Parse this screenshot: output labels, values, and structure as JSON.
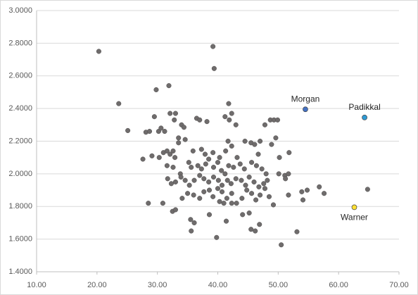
{
  "chart_data": {
    "type": "scatter",
    "xlim": [
      10,
      70
    ],
    "xticks": [
      {
        "value": 10,
        "label": "10.00"
      },
      {
        "value": 20,
        "label": "20.00"
      },
      {
        "value": 30,
        "label": "30.00"
      },
      {
        "value": 40,
        "label": "40.00"
      },
      {
        "value": 50,
        "label": "50.00"
      },
      {
        "value": 60,
        "label": "60.00"
      },
      {
        "value": 70,
        "label": "70.00"
      }
    ],
    "ylim": [
      1.4,
      3.0
    ],
    "yticks": [
      {
        "value": 1.4,
        "label": "1.4000"
      },
      {
        "value": 1.6,
        "label": "1.6000"
      },
      {
        "value": 1.8,
        "label": "1.8000"
      },
      {
        "value": 2.0,
        "label": "2.0000"
      },
      {
        "value": 2.2,
        "label": "2.2000"
      },
      {
        "value": 2.4,
        "label": "2.4000"
      },
      {
        "value": 2.6,
        "label": "2.6000"
      },
      {
        "value": 2.8,
        "label": "2.8000"
      },
      {
        "value": 3.0,
        "label": "3.0000"
      }
    ],
    "grid": true,
    "series": [
      {
        "color": "#6f6c6c",
        "x": [
          20.3,
          23.6,
          25.1,
          28.1,
          28.7,
          29.5,
          29.8,
          30.2,
          30.6,
          31.2,
          31.9,
          32.1,
          33.0,
          32.8,
          33.5,
          34.0,
          34.4,
          34.6,
          36.5,
          37.0,
          38.2,
          39.2,
          39.4,
          41.8,
          42.3,
          41.9,
          41.2,
          43.0,
          47.8,
          48.7,
          49.3,
          49.9,
          49.6,
          48.9,
          50.2,
          51.8,
          27.6,
          29.1,
          30.3,
          31.0,
          31.6,
          32.1,
          32.6,
          32.9,
          33.5,
          35.9,
          37.3,
          37.9,
          38.5,
          39.2,
          40.3,
          41.3,
          41.7,
          42.3,
          43.2,
          44.5,
          45.5,
          46.1,
          47.0,
          46.7,
          31.6,
          32.6,
          33.8,
          35.2,
          35.6,
          36.7,
          37.3,
          38.0,
          39.3,
          40.0,
          40.6,
          41.2,
          41.8,
          42.6,
          43.7,
          44.4,
          45.6,
          46.4,
          47.3,
          48.0,
          50.1,
          51.1,
          51.7,
          31.7,
          32.3,
          33.0,
          33.9,
          34.6,
          35.3,
          36.1,
          37.0,
          37.7,
          38.5,
          39.3,
          40.1,
          40.7,
          41.6,
          42.2,
          43.0,
          43.9,
          44.6,
          45.2,
          46.0,
          46.8,
          47.6,
          48.2,
          51.2,
          28.5,
          30.9,
          32.5,
          33.0,
          34.1,
          35.0,
          36.0,
          37.0,
          37.7,
          38.6,
          39.2,
          40.0,
          40.7,
          41.5,
          42.3,
          43.1,
          44.0,
          44.8,
          45.6,
          46.3,
          47.0,
          47.8,
          48.5,
          49.2,
          51.7,
          53.9,
          54.8,
          54.1,
          56.8,
          57.6,
          64.8,
          35.5,
          36.1,
          35.6,
          38.6,
          41.4,
          42.3,
          44.1,
          45.2,
          45.5,
          46.2,
          46.9,
          39.8,
          50.5,
          53.1,
          41.0,
          40.3
        ],
        "y": [
          2.75,
          2.43,
          2.265,
          2.255,
          2.26,
          2.35,
          2.515,
          2.26,
          2.28,
          2.26,
          2.54,
          2.37,
          2.37,
          2.33,
          2.22,
          2.3,
          2.285,
          2.21,
          2.34,
          2.33,
          2.32,
          2.78,
          2.645,
          2.43,
          2.37,
          2.33,
          2.35,
          2.3,
          2.3,
          2.33,
          2.33,
          2.33,
          2.22,
          2.18,
          2.1,
          2.13,
          2.09,
          2.11,
          2.1,
          2.13,
          2.14,
          2.12,
          2.14,
          2.1,
          2.19,
          2.14,
          2.15,
          2.12,
          2.09,
          2.13,
          2.1,
          2.14,
          2.2,
          2.17,
          2.1,
          2.2,
          2.19,
          2.18,
          2.2,
          2.12,
          2.05,
          2.04,
          2.0,
          2.07,
          2.04,
          2.05,
          2.03,
          2.06,
          2.04,
          2.07,
          2.02,
          2.0,
          2.05,
          2.04,
          2.06,
          2.03,
          2.07,
          2.05,
          2.03,
          2.0,
          2.0,
          1.99,
          2.0,
          1.97,
          1.94,
          1.95,
          1.98,
          1.96,
          1.93,
          1.96,
          1.99,
          1.97,
          1.95,
          1.98,
          1.96,
          1.93,
          1.96,
          1.94,
          1.97,
          1.96,
          1.93,
          1.98,
          1.95,
          1.92,
          1.94,
          1.96,
          1.97,
          1.82,
          1.82,
          1.77,
          1.78,
          1.85,
          1.88,
          1.87,
          1.85,
          1.89,
          1.9,
          1.86,
          1.91,
          1.89,
          1.85,
          1.88,
          1.82,
          1.85,
          1.9,
          1.88,
          1.84,
          1.87,
          1.91,
          1.86,
          1.81,
          1.87,
          1.89,
          1.9,
          1.84,
          1.92,
          1.88,
          1.905,
          1.72,
          1.7,
          1.65,
          1.75,
          1.71,
          1.82,
          1.75,
          1.76,
          1.66,
          1.65,
          1.69,
          1.61,
          1.565,
          1.645,
          1.82,
          1.83
        ]
      }
    ],
    "annotations": [
      {
        "label": "Morgan",
        "x": 54.5,
        "y": 2.395,
        "color": "#4472c4"
      },
      {
        "label": "Padikkal",
        "x": 64.3,
        "y": 2.345,
        "color": "#2e9bd6"
      },
      {
        "label": "Warner",
        "x": 62.6,
        "y": 1.795,
        "color": "#ffe033"
      }
    ]
  }
}
